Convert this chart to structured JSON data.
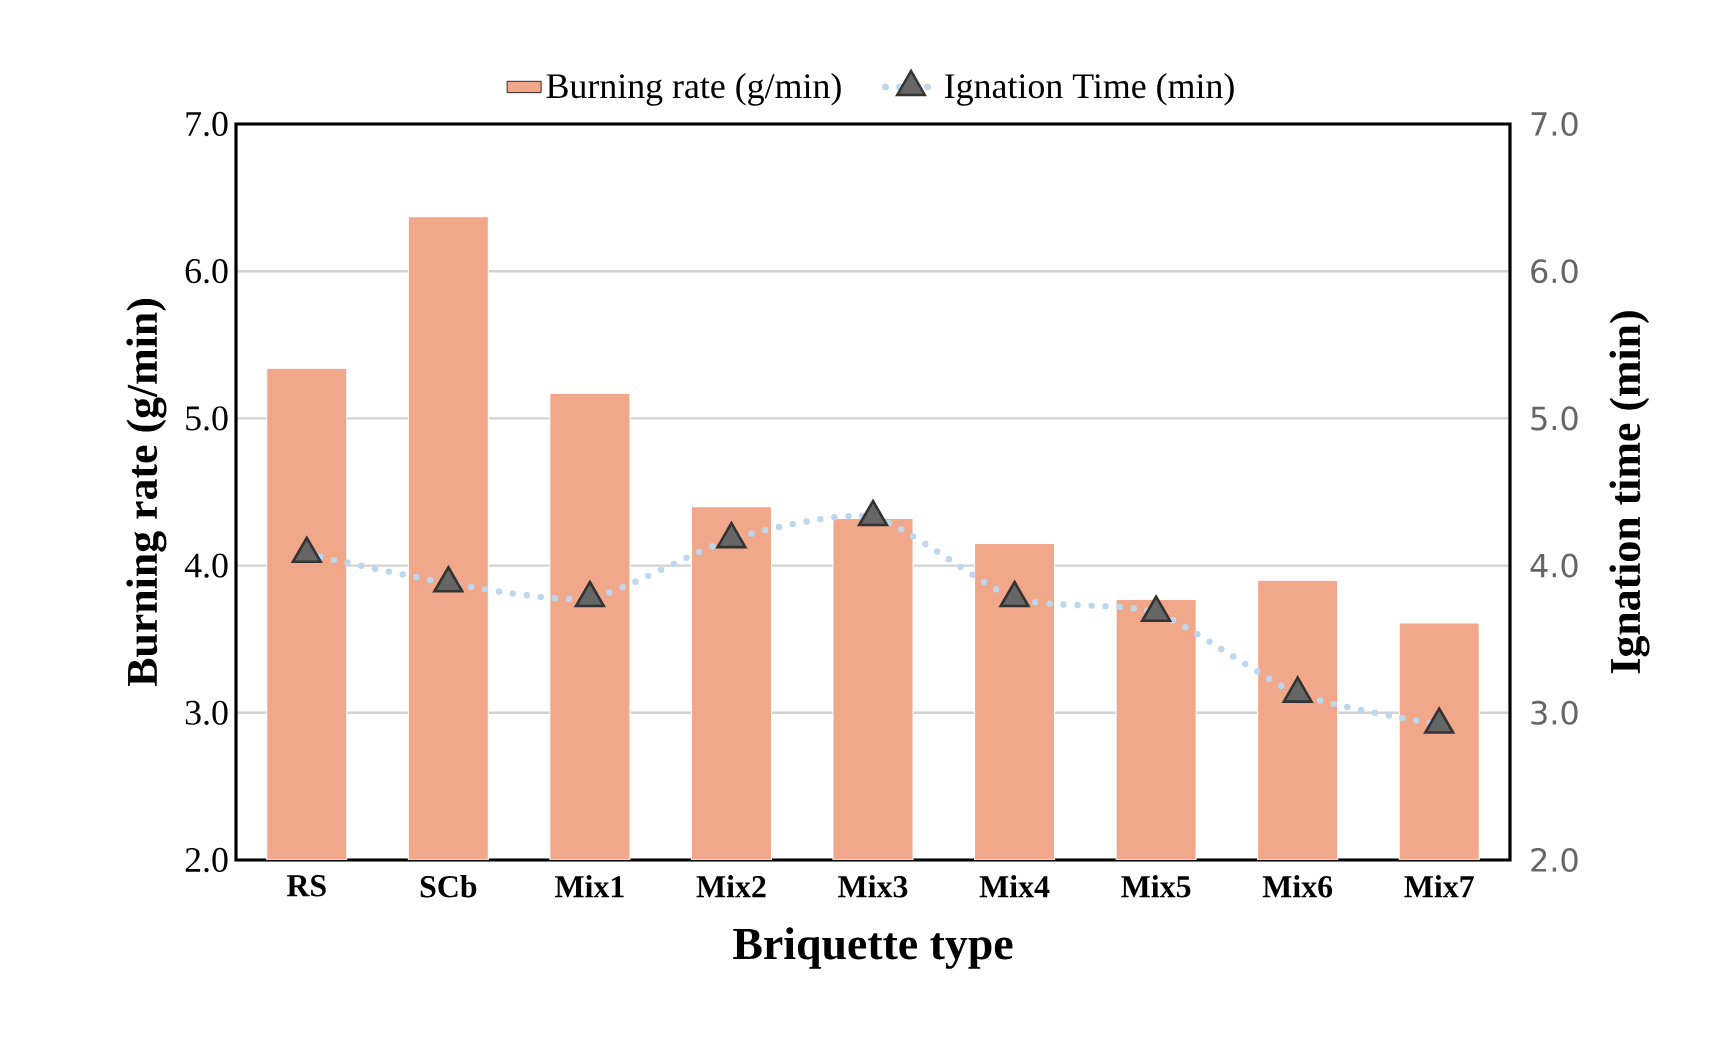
{
  "chart_data": {
    "type": "bar",
    "xlabel": "Briquette type",
    "ylabel": "Burning rate (g/min)",
    "y2label": "Ignation time (min)",
    "categories": [
      "RS",
      "SCb",
      "Mix1",
      "Mix2",
      "Mix3",
      "Mix4",
      "Mix5",
      "Mix6",
      "Mix7"
    ],
    "series": [
      {
        "name": "Burning rate (g/min)",
        "color": "#f1a88a",
        "values": [
          5.34,
          6.37,
          5.17,
          4.4,
          4.32,
          4.15,
          3.77,
          3.9,
          3.61
        ]
      },
      {
        "name": "Ignation Time (min)",
        "type": "line",
        "axis": "y2",
        "color": "#bdd7ee",
        "marker": "triangle",
        "line_style": "dotted",
        "values": [
          4.08,
          3.88,
          3.78,
          4.18,
          4.33,
          3.78,
          3.68,
          3.13,
          2.92
        ]
      }
    ],
    "ylim": [
      2,
      7
    ],
    "yticks": [
      {
        "value": 2,
        "label": "2.0"
      },
      {
        "value": 3,
        "label": "3.0"
      },
      {
        "value": 4,
        "label": "4.0"
      },
      {
        "value": 5,
        "label": "5.0"
      },
      {
        "value": 6,
        "label": "6.0"
      },
      {
        "value": 7,
        "label": "7.0"
      }
    ],
    "y2lim": [
      2,
      7
    ],
    "y2ticks": [
      {
        "value": 2,
        "label": "2.0"
      },
      {
        "value": 3,
        "label": "3.0"
      },
      {
        "value": 4,
        "label": "4.0"
      },
      {
        "value": 5,
        "label": "5.0"
      },
      {
        "value": 6,
        "label": "6.0"
      },
      {
        "value": 7,
        "label": "7.0"
      }
    ],
    "grid": "y",
    "legend": "top"
  }
}
